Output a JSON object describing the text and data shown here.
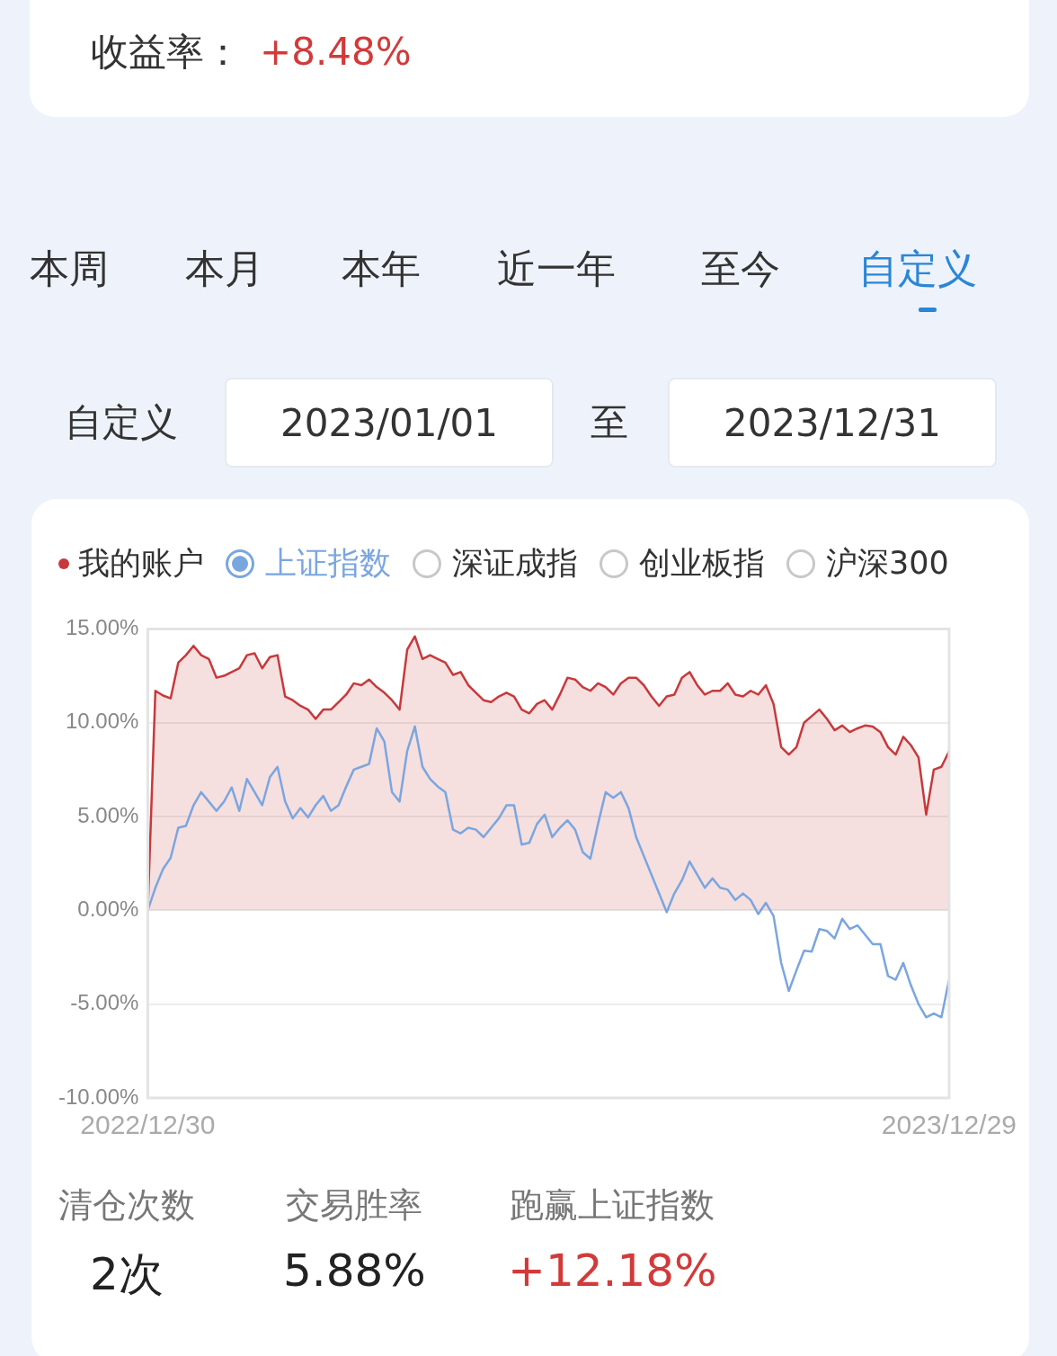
{
  "chart_data": {
    "type": "line",
    "categories": [
      "2022/12/30",
      null,
      null,
      null,
      null,
      null,
      null,
      null,
      null,
      null,
      null,
      null,
      null,
      null,
      null,
      null,
      null,
      null,
      null,
      null,
      null,
      null,
      null,
      null,
      null,
      null,
      null,
      null,
      null,
      null,
      null,
      null,
      null,
      null,
      null,
      null,
      null,
      null,
      null,
      null,
      null,
      null,
      null,
      null,
      null,
      null,
      null,
      null,
      null,
      null,
      null,
      null,
      null,
      null,
      null,
      null,
      null,
      null,
      null,
      null,
      null,
      null,
      null,
      null,
      null,
      null,
      null,
      null,
      null,
      null,
      null,
      null,
      null,
      null,
      null,
      null,
      null,
      null,
      null,
      null,
      null,
      null,
      null,
      null,
      null,
      null,
      null,
      null,
      null,
      null,
      null,
      null,
      null,
      null,
      null,
      null,
      null,
      null,
      null,
      null,
      null,
      null,
      null,
      null,
      null,
      "2023/12/29"
    ],
    "series": [
      {
        "name": "我的账户",
        "type": "area",
        "color": "#c8393b",
        "values": [
          0,
          11.7,
          11.45,
          11.3,
          13.2,
          13.6,
          14.1,
          13.6,
          13.4,
          12.4,
          12.5,
          12.7,
          12.9,
          13.6,
          13.7,
          12.9,
          13.5,
          13.6,
          11.4,
          11.2,
          10.9,
          10.7,
          10.2,
          10.7,
          10.7,
          11.1,
          11.5,
          12.1,
          12.0,
          12.3,
          11.9,
          11.6,
          11.2,
          10.7,
          13.9,
          14.6,
          13.4,
          13.6,
          13.4,
          13.2,
          12.55,
          12.7,
          12.0,
          11.6,
          11.2,
          11.1,
          11.4,
          11.6,
          11.4,
          10.7,
          10.5,
          11.0,
          11.2,
          10.7,
          11.5,
          12.4,
          12.3,
          11.9,
          11.7,
          12.1,
          11.9,
          11.5,
          12.1,
          12.4,
          12.4,
          12.0,
          11.4,
          10.9,
          11.4,
          11.5,
          12.4,
          12.7,
          12.0,
          11.5,
          11.7,
          11.7,
          12.1,
          11.5,
          11.4,
          11.7,
          11.5,
          12.0,
          11.0,
          8.7,
          8.3,
          8.7,
          10.0,
          10.35,
          10.7,
          10.2,
          9.6,
          9.85,
          9.5,
          9.7,
          9.85,
          9.8,
          9.5,
          8.7,
          8.3,
          9.25,
          8.8,
          8.15,
          5.1,
          7.5,
          7.65,
          8.48
        ]
      },
      {
        "name": "上证指数",
        "type": "line",
        "color": "#7aa6e0",
        "values": [
          0,
          1.2,
          2.2,
          2.8,
          4.4,
          4.5,
          5.6,
          6.3,
          5.8,
          5.3,
          5.8,
          6.55,
          5.3,
          7.0,
          6.3,
          5.6,
          7.1,
          7.65,
          5.8,
          4.9,
          5.45,
          4.95,
          5.6,
          6.1,
          5.3,
          5.6,
          6.6,
          7.5,
          7.65,
          7.8,
          9.7,
          9.0,
          6.3,
          5.8,
          8.5,
          9.8,
          7.65,
          7.0,
          6.6,
          6.3,
          4.3,
          4.1,
          4.4,
          4.3,
          3.9,
          4.4,
          4.9,
          5.6,
          5.6,
          3.5,
          3.6,
          4.6,
          5.1,
          3.9,
          4.4,
          4.8,
          4.3,
          3.1,
          2.75,
          4.6,
          6.3,
          6.0,
          6.3,
          5.45,
          3.9,
          2.9,
          1.9,
          0.9,
          -0.1,
          0.9,
          1.6,
          2.6,
          1.9,
          1.2,
          1.7,
          1.2,
          1.1,
          0.55,
          0.9,
          0.55,
          -0.2,
          0.4,
          -0.3,
          -2.8,
          -4.3,
          -3.2,
          -2.15,
          -2.2,
          -1.0,
          -1.1,
          -1.5,
          -0.45,
          -1.0,
          -0.8,
          -1.3,
          -1.8,
          -1.8,
          -3.5,
          -3.7,
          -2.8,
          -4.0,
          -5.0,
          -5.7,
          -5.5,
          -5.7,
          -3.7
        ]
      }
    ],
    "ylim": [
      -10,
      15
    ],
    "yticks": [
      {
        "value": -10,
        "label": "-10.00%"
      },
      {
        "value": -5,
        "label": "-5.00%"
      },
      {
        "value": 0,
        "label": "0.00%"
      },
      {
        "value": 5,
        "label": "5.00%"
      },
      {
        "value": 10,
        "label": "10.00%"
      },
      {
        "value": 15,
        "label": "15.00%"
      }
    ],
    "grid": "y",
    "legend": "top",
    "marker": "none",
    "line_style": "solid",
    "annotations": [
      "收益率：",
      "+8.48%",
      "本周",
      "本月",
      "本年",
      "近一年",
      "至今",
      "自定义",
      "自定义",
      "2023/01/01",
      "至",
      "2023/12/31",
      "深证成指",
      "创业板指",
      "沪深300",
      "清仓次数",
      "2次",
      "交易胜率",
      "5.88%",
      "跑赢上证指数",
      "+12.18%"
    ]
  }
}
